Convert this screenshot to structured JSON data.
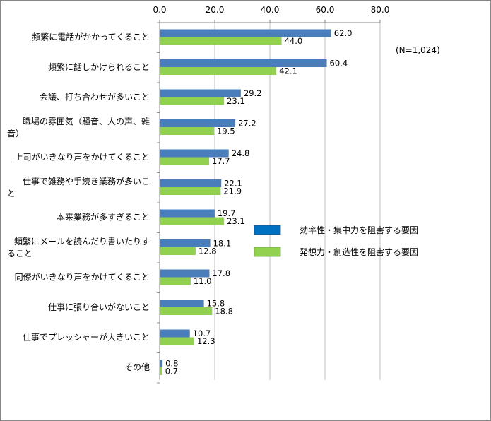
{
  "chart_data": {
    "type": "bar",
    "orientation": "horizontal",
    "x_ticks": [
      "0.0",
      "20.0",
      "40.0",
      "60.0",
      "80.0"
    ],
    "xlim": [
      0,
      80
    ],
    "annotation": "(N=1,024)",
    "categories": [
      {
        "lines": [
          "頻繁に電話がかかってくること"
        ]
      },
      {
        "lines": [
          "頻繁に話しかけられること"
        ]
      },
      {
        "lines": [
          "会議、打ち合わせが多いこと"
        ]
      },
      {
        "lines": [
          "職場の雰囲気（騒音、人の声、雑",
          "音）"
        ]
      },
      {
        "lines": [
          "上司がいきなり声をかけてくること"
        ]
      },
      {
        "lines": [
          "仕事で雑務や手続き業務が多いこ",
          "と"
        ]
      },
      {
        "lines": [
          "本来業務が多すぎること"
        ]
      },
      {
        "lines": [
          "頻繁にメールを読んだり書いたりす",
          "ること"
        ]
      },
      {
        "lines": [
          "同僚がいきなり声をかけてくること"
        ]
      },
      {
        "lines": [
          "仕事に張り合いがないこと"
        ]
      },
      {
        "lines": [
          "仕事でプレッシャーが大きいこと"
        ]
      },
      {
        "lines": [
          "その他"
        ]
      }
    ],
    "series": [
      {
        "name": "効率性・集中力を阻害する要因",
        "color": "#4a7ebb",
        "values": [
          62.0,
          60.4,
          29.2,
          27.2,
          24.8,
          22.1,
          19.7,
          18.1,
          17.8,
          15.8,
          10.7,
          0.8
        ],
        "labels": [
          "62.0",
          "60.4",
          "29.2",
          "27.2",
          "24.8",
          "22.1",
          "19.7",
          "18.1",
          "17.8",
          "15.8",
          "10.7",
          "0.8"
        ]
      },
      {
        "name": "発想力・創造性を阻害する要因",
        "color": "#92d050",
        "values": [
          44.0,
          42.1,
          23.1,
          19.5,
          17.7,
          21.9,
          23.1,
          12.8,
          11.0,
          18.8,
          12.3,
          0.7
        ],
        "labels": [
          "44.0",
          "42.1",
          "23.1",
          "19.5",
          "17.7",
          "21.9",
          "23.1",
          "12.8",
          "11.0",
          "18.8",
          "12.3",
          "0.7"
        ]
      }
    ],
    "legend": [
      {
        "label": "効率性・集中力を阻害する要因",
        "color": "#0070c0"
      },
      {
        "label": "発想力・創造性を阻害する要因",
        "color": "#92d050"
      }
    ]
  }
}
